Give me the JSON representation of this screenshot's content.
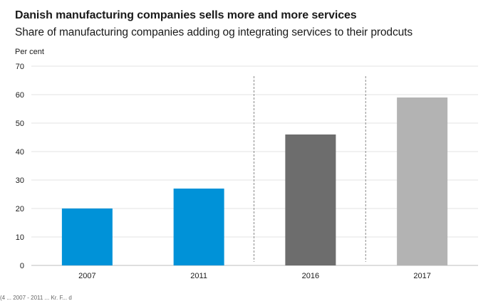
{
  "header": {
    "title": "Danish manufacturing companies sells more and more services",
    "subtitle": "Share of manufacturing companies adding og integrating services to their prodcuts"
  },
  "chart_data": {
    "type": "bar",
    "title": "Danish manufacturing companies sells more and more services",
    "subtitle": "Share of manufacturing companies adding og integrating services to their prodcuts",
    "ylabel": "Per cent",
    "xlabel": "",
    "categories": [
      "2007",
      "2011",
      "2016",
      "2017"
    ],
    "values": [
      20,
      27,
      46,
      59
    ],
    "colors": [
      "#0092d8",
      "#0092d8",
      "#6d6d6d",
      "#b3b3b3"
    ],
    "ylim": [
      0,
      70
    ],
    "yticks": [
      0,
      10,
      20,
      30,
      40,
      50,
      60,
      70
    ],
    "grid": true,
    "separators_before": [
      "2016",
      "2017"
    ]
  },
  "footer": {
    "note": "(4 ... 2007 - 2011 ... Kr. F... d"
  }
}
